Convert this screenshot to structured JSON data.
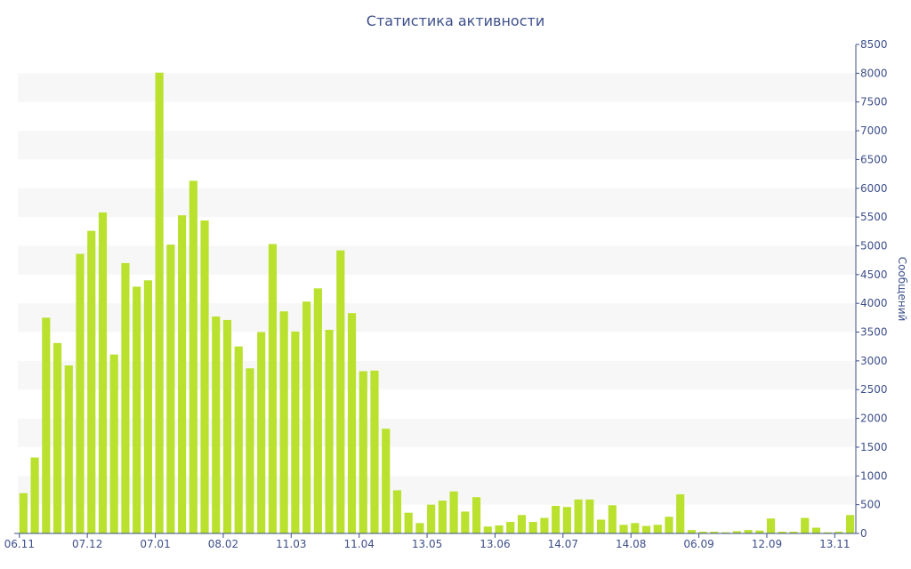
{
  "chart_data": {
    "type": "bar",
    "title": "Статистика активности",
    "xlabel": "",
    "ylabel": "Сообщений",
    "ylim": [
      0,
      8500
    ],
    "y_ticks": [
      0,
      500,
      1000,
      1500,
      2000,
      2500,
      3000,
      3500,
      4000,
      4500,
      5000,
      5500,
      6000,
      6500,
      7000,
      7500,
      8000,
      8500
    ],
    "y_axis_position": "right",
    "x_tick_labels": [
      "06.11",
      "07.12",
      "07.01",
      "08.02",
      "11.03",
      "11.04",
      "13.05",
      "13.06",
      "14.07",
      "14.08",
      "06.09",
      "12.09",
      "13.11"
    ],
    "x_tick_indices": [
      0,
      6,
      12,
      18,
      24,
      30,
      36,
      42,
      48,
      54,
      60,
      66,
      72
    ],
    "grid": "horizontal alternating bands",
    "bar_color": "#b9e12d",
    "values": [
      700,
      1320,
      3750,
      3310,
      2920,
      4860,
      5260,
      5580,
      3110,
      4700,
      4290,
      4400,
      8010,
      5020,
      5530,
      6130,
      5440,
      3770,
      3710,
      3250,
      2870,
      3500,
      5030,
      3860,
      3510,
      4030,
      4260,
      3540,
      4920,
      3830,
      2820,
      2830,
      1820,
      750,
      360,
      180,
      500,
      570,
      730,
      380,
      630,
      120,
      140,
      200,
      320,
      200,
      270,
      480,
      460,
      590,
      590,
      240,
      490,
      150,
      180,
      130,
      150,
      290,
      680,
      60,
      30,
      30,
      20,
      40,
      60,
      50,
      260,
      30,
      30,
      270,
      100,
      20,
      30,
      320
    ]
  }
}
